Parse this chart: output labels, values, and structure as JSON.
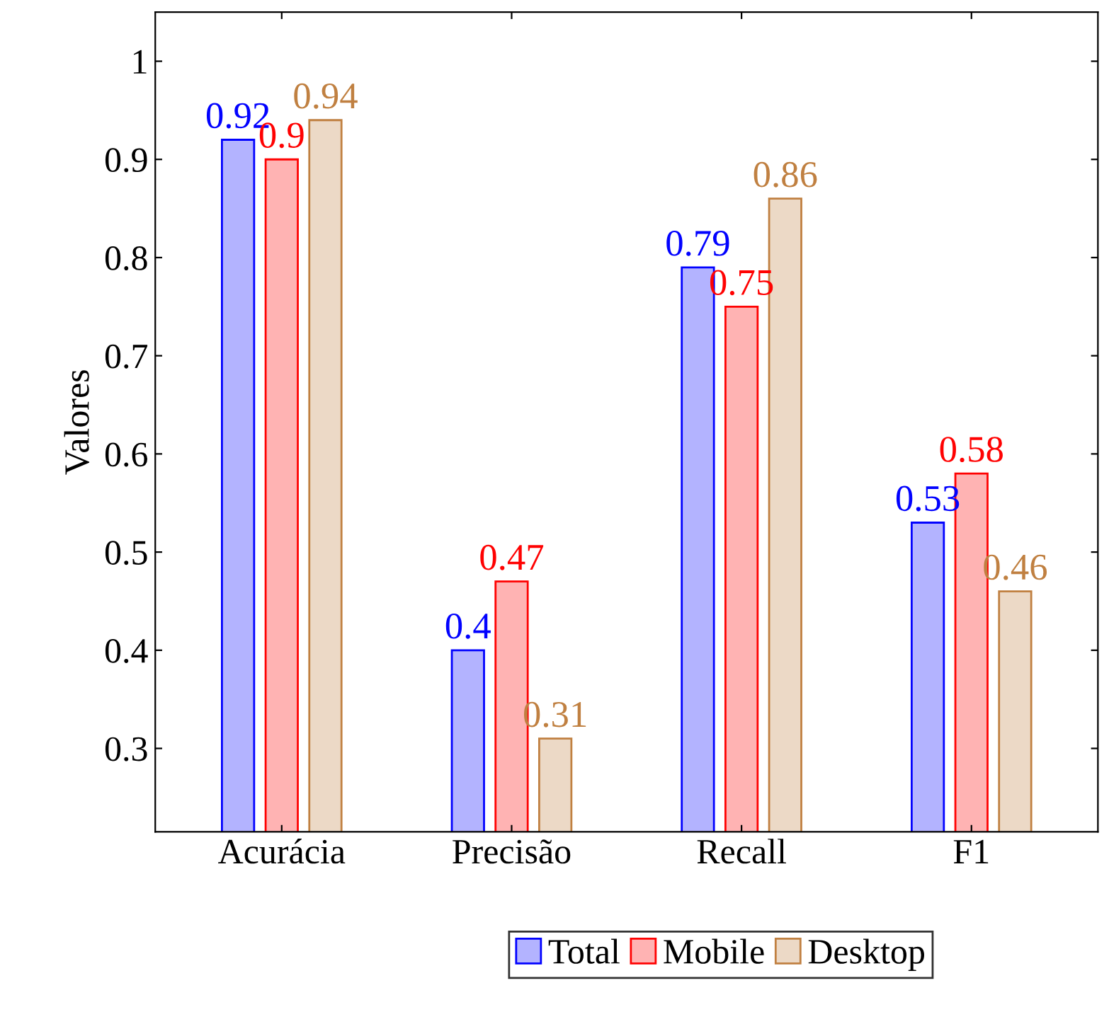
{
  "chart_data": {
    "type": "bar",
    "ylabel": "Valores",
    "categories": [
      "Acurácia",
      "Precisão",
      "Recall",
      "F1"
    ],
    "series": [
      {
        "name": "Total",
        "color": "#b3b3ff",
        "values": [
          0.92,
          0.4,
          0.79,
          0.53
        ]
      },
      {
        "name": "Mobile",
        "color": "#ffb3b3",
        "values": [
          0.9,
          0.47,
          0.75,
          0.58
        ]
      },
      {
        "name": "Desktop",
        "color": "#ecd9c6",
        "values": [
          0.94,
          0.31,
          0.86,
          0.46
        ]
      }
    ],
    "ylim": [
      0.215,
      1.05
    ],
    "yticks": [
      0.3,
      0.4,
      0.5,
      0.6,
      0.7,
      0.8,
      0.9,
      1
    ],
    "data_labels": true,
    "legend": "bottom",
    "grid": false
  }
}
